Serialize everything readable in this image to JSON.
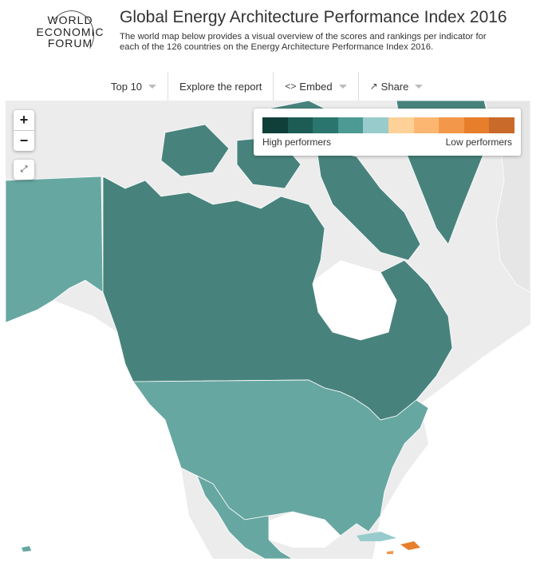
{
  "logo": {
    "line1": "WORLD",
    "line2": "ECONOMIC",
    "line3": "FORUM"
  },
  "header": {
    "title": "Global Energy Architecture Performance Index 2016",
    "subtitle": "The world map below provides a visual overview of the scores and rankings per indicator for each of the 126 countries on the Energy Architecture Performance Index 2016."
  },
  "nav": {
    "top10": "Top 10",
    "explore": "Explore the report",
    "embed": "Embed",
    "share": "Share"
  },
  "controls": {
    "zoom_in": "+",
    "zoom_out": "−"
  },
  "legend": {
    "high_label": "High performers",
    "low_label": "Low performers",
    "colors": [
      "#0f3f38",
      "#1d5c55",
      "#2a766f",
      "#4c9a93",
      "#98cccc",
      "#fdd197",
      "#fcb672",
      "#f3984a",
      "#e67e2b",
      "#c96a2a"
    ]
  },
  "colors": {
    "canada": "#47837c",
    "usa": "#67a7a2",
    "mexico": "#67a7a2",
    "alaska": "#67a7a2",
    "greenland": "#47837c",
    "land_unrated": "#ececec",
    "water": "#ffffff"
  }
}
